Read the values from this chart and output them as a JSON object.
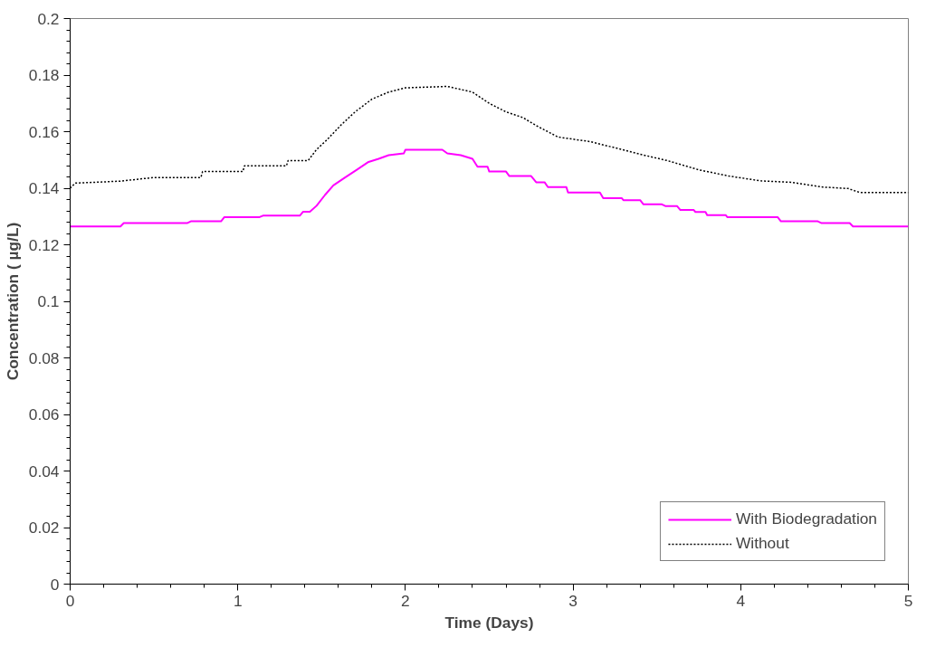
{
  "chart_data": {
    "type": "line",
    "xlabel": "Time (Days)",
    "ylabel": "Concentration ( µg/L)",
    "xlim": [
      0,
      5
    ],
    "xticks": [
      0,
      1,
      2,
      3,
      4,
      5
    ],
    "ylim": [
      0,
      0.2
    ],
    "yticks": [
      0,
      0.02,
      0.04,
      0.06,
      0.08,
      0.1,
      0.12,
      0.14,
      0.16,
      0.18,
      0.2
    ],
    "grid": false,
    "legend": "bottom right",
    "marker": "none",
    "series": [
      {
        "name": "With Biodegradation",
        "color": "#ff00ff",
        "line_style": "solid",
        "x": [
          0,
          0.3,
          0.32,
          0.7,
          0.72,
          0.9,
          0.92,
          1.13,
          1.15,
          1.37,
          1.39,
          1.43,
          1.47,
          1.52,
          1.57,
          1.64,
          1.71,
          1.78,
          1.84,
          1.9,
          1.99,
          2.0,
          2.22,
          2.25,
          2.33,
          2.4,
          2.43,
          2.49,
          2.5,
          2.6,
          2.62,
          2.75,
          2.78,
          2.83,
          2.85,
          2.96,
          2.97,
          3.16,
          3.18,
          3.29,
          3.3,
          3.4,
          3.42,
          3.53,
          3.55,
          3.62,
          3.64,
          3.72,
          3.73,
          3.79,
          3.8,
          3.91,
          3.92,
          4.22,
          4.24,
          4.46,
          4.48,
          4.65,
          4.67,
          5.0
        ],
        "values": [
          0.1265,
          0.1265,
          0.1277,
          0.1277,
          0.1283,
          0.1283,
          0.1298,
          0.1298,
          0.1303,
          0.1303,
          0.1317,
          0.1317,
          0.1338,
          0.1376,
          0.141,
          0.1438,
          0.1465,
          0.1493,
          0.1504,
          0.1517,
          0.1523,
          0.1536,
          0.1536,
          0.1523,
          0.1517,
          0.1504,
          0.1476,
          0.1476,
          0.1459,
          0.1459,
          0.1443,
          0.1443,
          0.1421,
          0.1421,
          0.1404,
          0.1404,
          0.1385,
          0.1385,
          0.1365,
          0.1365,
          0.1358,
          0.1358,
          0.1343,
          0.1343,
          0.1337,
          0.1337,
          0.1323,
          0.1323,
          0.1316,
          0.1316,
          0.1305,
          0.1305,
          0.1298,
          0.1298,
          0.1283,
          0.1283,
          0.1277,
          0.1277,
          0.1265,
          0.1265
        ]
      },
      {
        "name": "Without",
        "color": "#000000",
        "line_style": "dotted",
        "x": [
          0,
          0.03,
          0.3,
          0.5,
          0.78,
          0.79,
          1.03,
          1.04,
          1.29,
          1.3,
          1.42,
          1.47,
          1.53,
          1.62,
          1.7,
          1.8,
          1.9,
          2.0,
          2.25,
          2.4,
          2.5,
          2.6,
          2.7,
          2.785,
          2.91,
          3.1,
          3.25,
          3.4,
          3.56,
          3.75,
          3.93,
          4.12,
          4.3,
          4.49,
          4.64,
          4.71,
          5.0
        ],
        "values": [
          0.14,
          0.1418,
          0.1425,
          0.1438,
          0.1438,
          0.1459,
          0.1459,
          0.1479,
          0.1479,
          0.1498,
          0.1498,
          0.1537,
          0.157,
          0.1626,
          0.167,
          0.1715,
          0.174,
          0.1755,
          0.176,
          0.174,
          0.17,
          0.167,
          0.165,
          0.162,
          0.1581,
          0.1565,
          0.1543,
          0.152,
          0.1498,
          0.1465,
          0.1443,
          0.1426,
          0.1421,
          0.1404,
          0.1399,
          0.1385,
          0.1385
        ]
      }
    ]
  }
}
